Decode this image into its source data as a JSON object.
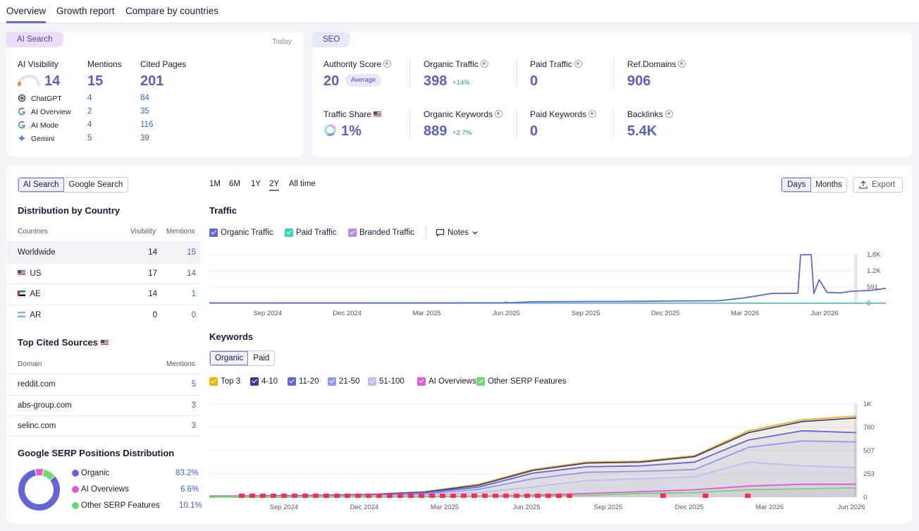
{
  "tabs": [
    "Overview",
    "Growth report",
    "Compare by countries"
  ],
  "ai_card": {
    "pill": "AI Search",
    "date": "Today",
    "headers": {
      "visibility": "AI Visibility",
      "mentions": "Mentions",
      "cited": "Cited Pages"
    },
    "totals": {
      "visibility": "14",
      "mentions": "15",
      "cited": "201"
    },
    "visibility_gauge": 0.14,
    "rows": [
      {
        "name": "ChatGPT",
        "icon": "chatgpt-icon",
        "mentions": "4",
        "cited": "84"
      },
      {
        "name": "AI Overview",
        "icon": "google-icon",
        "mentions": "2",
        "cited": "35"
      },
      {
        "name": "AI Mode",
        "icon": "google-icon",
        "mentions": "4",
        "cited": "116"
      },
      {
        "name": "Gemini",
        "icon": "gemini-icon",
        "mentions": "5",
        "cited": "39"
      }
    ]
  },
  "seo_card": {
    "pill": "SEO",
    "authority": {
      "label": "Authority Score",
      "value": "20",
      "badge": "Average"
    },
    "organic_traffic": {
      "label": "Organic Traffic",
      "value": "398",
      "delta": "+14%"
    },
    "paid_traffic": {
      "label": "Paid Traffic",
      "value": "0"
    },
    "ref_domains": {
      "label": "Ref.Domains",
      "value": "906"
    },
    "traffic_share": {
      "label": "Traffic Share",
      "value": "1%"
    },
    "organic_keywords": {
      "label": "Organic Keywords",
      "value": "889",
      "delta": "+2.7%"
    },
    "paid_keywords": {
      "label": "Paid Keywords",
      "value": "0"
    },
    "backlinks": {
      "label": "Backlinks",
      "value": "5.4K"
    }
  },
  "left_panel": {
    "toggle": [
      "AI Search",
      "Google Search"
    ],
    "dist_title": "Distribution by Country",
    "dist_headers": {
      "country": "Countries",
      "visibility": "Visibility",
      "mentions": "Mentions"
    },
    "dist_rows": [
      {
        "name": "Worldwide",
        "visibility": "14",
        "mentions": "15",
        "flag": ""
      },
      {
        "name": "US",
        "visibility": "17",
        "mentions": "14",
        "flag": "us-flag-icon"
      },
      {
        "name": "AE",
        "visibility": "14",
        "mentions": "1",
        "flag": "ae-flag-icon"
      },
      {
        "name": "AR",
        "visibility": "0",
        "mentions": "0",
        "flag": "ar-flag-icon"
      }
    ],
    "sources_title": "Top Cited Sources",
    "sources_headers": {
      "domain": "Domain",
      "mentions": "Mentions"
    },
    "sources_rows": [
      {
        "domain": "reddit.com",
        "mentions": "5"
      },
      {
        "domain": "abs-group.com",
        "mentions": "3"
      },
      {
        "domain": "selinc.com",
        "mentions": "3"
      }
    ],
    "serp_title": "Google SERP Positions Distribution",
    "serp_items": [
      {
        "name": "Organic",
        "value": "83.2%",
        "pct": 83.2,
        "color": "#6366d4"
      },
      {
        "name": "AI Overviews",
        "value": "6.6%",
        "pct": 6.6,
        "color": "#e35ad8"
      },
      {
        "name": "Other SERP Features",
        "value": "10.1%",
        "pct": 10.1,
        "color": "#6fd86f"
      }
    ]
  },
  "controls": {
    "ranges": [
      "1M",
      "6M",
      "1Y",
      "2Y",
      "All time"
    ],
    "active_range": "2Y",
    "granularity": [
      "Days",
      "Months"
    ],
    "export": "Export"
  },
  "traffic": {
    "title": "Traffic",
    "legend": [
      {
        "name": "Organic Traffic",
        "color": "#6366d4"
      },
      {
        "name": "Paid Traffic",
        "color": "#3ad3b8"
      },
      {
        "name": "Branded Traffic",
        "color": "#b88ae8"
      }
    ],
    "notes": "Notes"
  },
  "keywords": {
    "title": "Keywords",
    "toggle": [
      "Organic",
      "Paid"
    ],
    "legend": [
      {
        "name": "Top 3",
        "color": "#f5b20a"
      },
      {
        "name": "4-10",
        "color": "#3b3f93"
      },
      {
        "name": "11-20",
        "color": "#6366d4"
      },
      {
        "name": "21-50",
        "color": "#8f98ec"
      },
      {
        "name": "51-100",
        "color": "#b8c0f4"
      },
      {
        "name": "AI Overviews",
        "color": "#e35ad8"
      },
      {
        "name": "Other SERP Features",
        "color": "#6fd86f"
      }
    ]
  },
  "chart_data": [
    {
      "type": "line",
      "title": "Traffic",
      "x_ticks": [
        "Sep 2024",
        "Dec 2024",
        "Mar 2025",
        "Jun 2025",
        "Sep 2025",
        "Dec 2025",
        "Mar 2026",
        "Jun 2026"
      ],
      "y_ticks": [
        "1.8K",
        "1.2K",
        "591",
        "0"
      ],
      "ylim": [
        0,
        1800
      ],
      "x_range_months": [
        -2.2,
        22.2
      ],
      "series": [
        {
          "name": "Organic Traffic",
          "color": "#6366d4",
          "points": [
            [
              0,
              10
            ],
            [
              6,
              12
            ],
            [
              8.9,
              15
            ],
            [
              9,
              40
            ],
            [
              9.1,
              15
            ],
            [
              10,
              55
            ],
            [
              12,
              65
            ],
            [
              14,
              70
            ],
            [
              15,
              80
            ],
            [
              17,
              90
            ],
            [
              18,
              200
            ],
            [
              19,
              360
            ],
            [
              20,
              370
            ],
            [
              20.1,
              1790
            ],
            [
              20.5,
              1800
            ],
            [
              20.6,
              360
            ],
            [
              20.8,
              870
            ],
            [
              21.1,
              400
            ],
            [
              21.6,
              380
            ],
            [
              22,
              440
            ],
            [
              22.8,
              480
            ],
            [
              23.4,
              560
            ],
            [
              24,
              380
            ],
            [
              24.3,
              500
            ]
          ]
        },
        {
          "name": "Paid Traffic",
          "color": "#3ad3b8",
          "points": [
            [
              -2.2,
              0
            ],
            [
              24.3,
              0
            ]
          ]
        },
        {
          "name": "Branded Traffic",
          "color": "#b88ae8",
          "points": [
            [
              -2.2,
              8
            ],
            [
              24.3,
              8
            ]
          ]
        }
      ]
    },
    {
      "type": "area",
      "title": "Keywords",
      "x_ticks": [
        "Sep 2024",
        "Dec 2024",
        "Mar 2025",
        "Jun 2025",
        "Sep 2025",
        "Dec 2025",
        "Mar 2026",
        "Jun 2026"
      ],
      "y_ticks": [
        "1K",
        "760",
        "507",
        "253",
        "0"
      ],
      "ylim": [
        0,
        1010
      ],
      "series": [
        {
          "name": "Top 3",
          "color": "#f5b20a",
          "values": [
            10,
            15,
            20,
            30,
            60,
            140,
            300,
            380,
            390,
            450,
            720,
            840,
            880
          ]
        },
        {
          "name": "4-10",
          "color": "#3b3f93",
          "values": [
            10,
            14,
            19,
            28,
            55,
            130,
            290,
            370,
            380,
            440,
            700,
            820,
            860
          ]
        },
        {
          "name": "11-20",
          "color": "#6366d4",
          "values": [
            8,
            12,
            16,
            24,
            48,
            110,
            260,
            330,
            340,
            380,
            620,
            720,
            700
          ]
        },
        {
          "name": "21-50",
          "color": "#8f98ec",
          "values": [
            6,
            9,
            12,
            18,
            36,
            85,
            200,
            270,
            280,
            300,
            540,
            610,
            600
          ]
        },
        {
          "name": "51-100",
          "color": "#b8c0f4",
          "values": [
            4,
            6,
            8,
            12,
            22,
            50,
            110,
            180,
            200,
            220,
            380,
            340,
            320
          ]
        },
        {
          "name": "AI Overviews",
          "color": "#e35ad8",
          "values": [
            2,
            2,
            3,
            4,
            6,
            10,
            20,
            40,
            60,
            80,
            120,
            140,
            140
          ]
        },
        {
          "name": "Other SERP Features",
          "color": "#6fd86f",
          "values": [
            1,
            1,
            2,
            3,
            4,
            6,
            10,
            20,
            40,
            50,
            80,
            90,
            100
          ]
        }
      ]
    },
    {
      "type": "pie",
      "title": "Google SERP Positions Distribution",
      "labels": [
        "Organic",
        "AI Overviews",
        "Other SERP Features"
      ],
      "values": [
        83.2,
        6.6,
        10.1
      ]
    }
  ]
}
